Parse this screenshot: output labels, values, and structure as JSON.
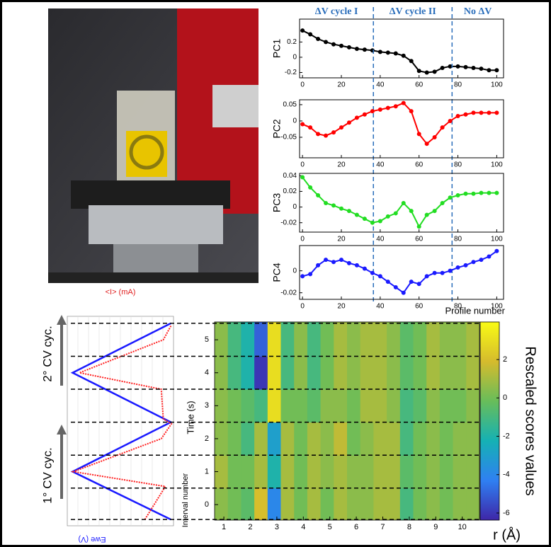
{
  "chart_data": [
    {
      "type": "line",
      "y_label": "PC1",
      "color": "#000000",
      "x": [
        0,
        4,
        8,
        12,
        16,
        20,
        24,
        28,
        32,
        36,
        40,
        44,
        48,
        52,
        56,
        60,
        64,
        68,
        72,
        76,
        80,
        84,
        88,
        92,
        96,
        100
      ],
      "values": [
        0.35,
        0.3,
        0.24,
        0.2,
        0.17,
        0.15,
        0.13,
        0.11,
        0.1,
        0.09,
        0.07,
        0.06,
        0.05,
        0.02,
        -0.05,
        -0.18,
        -0.2,
        -0.19,
        -0.14,
        -0.12,
        -0.12,
        -0.13,
        -0.14,
        -0.15,
        -0.17,
        -0.17
      ],
      "xlim": [
        -1.5,
        103.5
      ],
      "xticks": [
        0,
        20,
        40,
        60,
        80,
        100
      ],
      "ylim": [
        -0.27,
        0.5
      ],
      "yticks": [
        -0.2,
        0,
        0.2
      ],
      "vlines": [
        36.5,
        77
      ],
      "vline_color": "#2a6ebb",
      "annotations": [
        "ΔV cycle I",
        "ΔV cycle II",
        "No ΔV"
      ],
      "annotation_color": "#2a6ebb"
    },
    {
      "type": "line",
      "y_label": "PC2",
      "color": "#ff0000",
      "x": [
        0,
        4,
        8,
        12,
        16,
        20,
        24,
        28,
        32,
        36,
        40,
        44,
        48,
        52,
        56,
        60,
        64,
        68,
        72,
        76,
        80,
        84,
        88,
        92,
        96,
        100
      ],
      "values": [
        -0.01,
        -0.02,
        -0.04,
        -0.045,
        -0.035,
        -0.02,
        -0.005,
        0.01,
        0.02,
        0.03,
        0.035,
        0.04,
        0.045,
        0.055,
        0.03,
        -0.04,
        -0.07,
        -0.05,
        -0.02,
        0,
        0.015,
        0.02,
        0.025,
        0.025,
        0.025,
        0.025
      ],
      "xlim": [
        -1.5,
        103.5
      ],
      "xticks": [
        0,
        20,
        40,
        60,
        80,
        100
      ],
      "ylim": [
        -0.113,
        0.065
      ],
      "yticks": [
        -0.05,
        0,
        0.05
      ]
    },
    {
      "type": "line",
      "y_label": "PC3",
      "color": "#22dd22",
      "x": [
        0,
        4,
        8,
        12,
        16,
        20,
        24,
        28,
        32,
        36,
        40,
        44,
        48,
        52,
        56,
        60,
        64,
        68,
        72,
        76,
        80,
        84,
        88,
        92,
        96,
        100
      ],
      "values": [
        0.038,
        0.025,
        0.015,
        0.005,
        0.002,
        -0.002,
        -0.005,
        -0.01,
        -0.015,
        -0.02,
        -0.018,
        -0.012,
        -0.008,
        0.005,
        -0.005,
        -0.025,
        -0.01,
        -0.005,
        0.005,
        0.012,
        0.015,
        0.017,
        0.017,
        0.018,
        0.018,
        0.018
      ],
      "xlim": [
        -1.5,
        103.5
      ],
      "xticks": [
        0,
        20,
        40,
        60,
        80,
        100
      ],
      "ylim": [
        -0.032,
        0.043
      ],
      "yticks": [
        -0.02,
        0,
        0.02,
        0.04
      ]
    },
    {
      "type": "line",
      "y_label": "PC4",
      "color": "#1a1aff",
      "x_label": "Profile number",
      "x": [
        0,
        4,
        8,
        12,
        16,
        20,
        24,
        28,
        32,
        36,
        40,
        44,
        48,
        52,
        56,
        60,
        64,
        68,
        72,
        76,
        80,
        84,
        88,
        92,
        96,
        100
      ],
      "values": [
        -0.005,
        -0.003,
        0.005,
        0.01,
        0.008,
        0.01,
        0.007,
        0.005,
        0.002,
        -0.002,
        -0.005,
        -0.01,
        -0.015,
        -0.02,
        -0.01,
        -0.012,
        -0.005,
        -0.002,
        -0.002,
        0,
        0.003,
        0.005,
        0.008,
        0.01,
        0.013,
        0.018
      ],
      "xlim": [
        -1.5,
        103.5
      ],
      "xticks": [
        0,
        20,
        40,
        60,
        80,
        100
      ],
      "ylim": [
        -0.026,
        0.023
      ],
      "yticks": [
        -0.02,
        0
      ]
    },
    {
      "type": "cv",
      "x_label": "Ewe (V)",
      "x2_label": "<I> (mA)",
      "ylim": [
        -0.47,
        5.54
      ],
      "annotations": [
        "2° CV cyc.",
        "1° CV cyc."
      ],
      "series": [
        {
          "color": "#1a1aff",
          "lim": [
            -1.5,
            0.5
          ],
          "time": [
            -0.45,
            1.0,
            2.5,
            4.0,
            5.5
          ],
          "values": [
            0.45,
            -1.4,
            0.45,
            -1.4,
            0.45
          ]
        },
        {
          "color": "#ff2020",
          "lim": [
            -2,
            0.6
          ],
          "time": [
            -0.45,
            0.55,
            1.0,
            2.0,
            2.45,
            2.6,
            3.5,
            4.0,
            5.0,
            5.45
          ],
          "values": [
            -0.1,
            0.4,
            -1.85,
            0.3,
            0.55,
            0.35,
            0.3,
            -1.7,
            0.35,
            0.55
          ]
        }
      ]
    },
    {
      "type": "heatmap",
      "x_label": "r (Å)",
      "y_label": "Time (s)",
      "interval_label": "Interval number",
      "colorbar_label": "Rescaled scores values",
      "x": [
        0.9,
        1.4,
        1.9,
        2.4,
        2.9,
        3.4,
        3.9,
        4.4,
        4.9,
        5.4,
        5.9,
        6.4,
        6.9,
        7.4,
        7.9,
        8.4,
        8.9,
        9.4,
        9.9,
        10.4
      ],
      "y": [
        0,
        1,
        2,
        3,
        4,
        5
      ],
      "z": [
        [
          0.5,
          0,
          -0.5,
          2,
          -4,
          1,
          0,
          1,
          0,
          1,
          0.5,
          0.5,
          1,
          1,
          -1,
          0,
          0.5,
          0,
          0.5,
          0.5
        ],
        [
          1,
          0,
          0,
          1,
          -2,
          1,
          0,
          1,
          0.5,
          1,
          0.5,
          0.5,
          1,
          1,
          -0.5,
          0,
          0.5,
          0,
          0.5,
          0.5
        ],
        [
          0.5,
          0,
          -1,
          1,
          -3,
          1,
          0,
          1,
          0.5,
          1.5,
          0,
          0.5,
          1,
          1,
          -1,
          0,
          0.5,
          0,
          0.5,
          0.5
        ],
        [
          0.5,
          0,
          -0.5,
          -1,
          3,
          0,
          0,
          -0.5,
          0.5,
          0.5,
          0,
          1,
          1,
          0.5,
          -1,
          -0.5,
          0.5,
          0,
          0,
          0.5
        ],
        [
          0.5,
          -1,
          -2,
          -6,
          3,
          -1,
          0.5,
          -1,
          0,
          1,
          0.5,
          1,
          1,
          0.5,
          -0.5,
          0,
          1,
          0.5,
          0.5,
          1
        ],
        [
          0.5,
          -1,
          -2,
          -5,
          3,
          -1,
          0.5,
          -1,
          0,
          1,
          0.5,
          1,
          1,
          0.5,
          -0.5,
          0,
          1,
          0.5,
          0.5,
          1
        ]
      ],
      "xlim": [
        0.65,
        10.65
      ],
      "xticks": [
        1,
        2,
        3,
        4,
        5,
        6,
        7,
        8,
        9,
        10
      ],
      "ylim": [
        -0.47,
        5.54
      ],
      "yticks": [
        0,
        1,
        2,
        3,
        4,
        5
      ],
      "clim": [
        -6.37,
        3.96
      ],
      "cticks": [
        -6,
        -4,
        -2,
        0,
        2
      ],
      "colormap": [
        "#3e26a8",
        "#2f80f2",
        "#15b1b4",
        "#68bd5a",
        "#d5bb2d",
        "#f9fb15"
      ],
      "hlines": [
        -0.45,
        0.5,
        1.5,
        2.5,
        3.5,
        4.5,
        5.5
      ]
    }
  ]
}
